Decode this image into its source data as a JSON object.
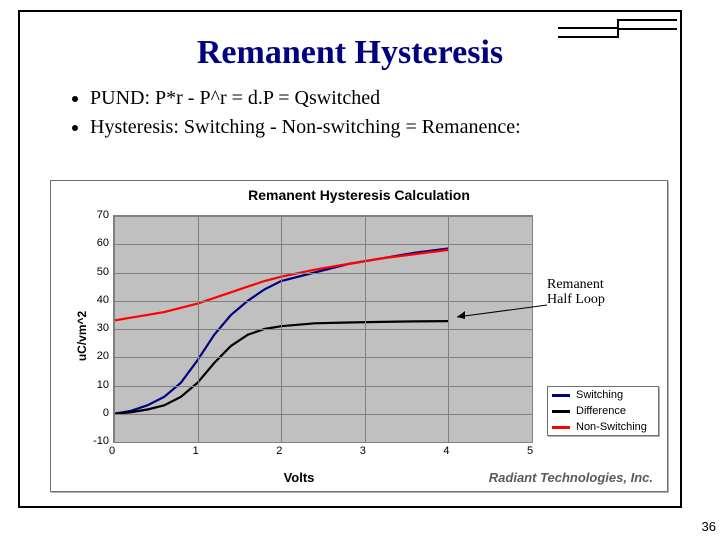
{
  "slide": {
    "title": "Remanent Hysteresis",
    "title_color": "#000080",
    "bullets": [
      "PUND:  P*r - P^r = d.P = Qswitched",
      "Hysteresis: Switching - Non-switching  = Remanence:"
    ],
    "page_number": "36",
    "footer": "Radiant Technologies, Inc."
  },
  "chart": {
    "type": "line",
    "title": "Remanent Hysteresis Calculation",
    "title_fontsize": 14,
    "xlabel": "Volts",
    "ylabel": "uC/vm^2",
    "label_fontsize": 12,
    "background_color": "#c0c0c0",
    "grid_color": "#808080",
    "xlim": [
      0,
      5
    ],
    "ylim": [
      -10,
      70
    ],
    "xtick_step": 1,
    "ytick_step": 10,
    "xticks": [
      0,
      1,
      2,
      3,
      4,
      5
    ],
    "yticks": [
      -10,
      0,
      10,
      20,
      30,
      40,
      50,
      60,
      70
    ],
    "line_width": 2.2,
    "series": [
      {
        "name": "Switching",
        "color": "#000080",
        "x": [
          0.0,
          0.2,
          0.4,
          0.6,
          0.8,
          1.0,
          1.2,
          1.4,
          1.6,
          1.8,
          2.0,
          2.4,
          2.8,
          3.2,
          3.6,
          4.0
        ],
        "y": [
          0.0,
          1.0,
          3.0,
          6.0,
          11.0,
          19.0,
          28.0,
          35.0,
          40.0,
          44.0,
          47.0,
          50.0,
          53.0,
          55.0,
          57.0,
          58.5
        ]
      },
      {
        "name": "Difference",
        "color": "#000000",
        "x": [
          0.0,
          0.2,
          0.4,
          0.6,
          0.8,
          1.0,
          1.2,
          1.4,
          1.6,
          1.8,
          2.0,
          2.4,
          2.8,
          3.2,
          3.6,
          4.0
        ],
        "y": [
          0.0,
          0.5,
          1.5,
          3.0,
          6.0,
          11.0,
          18.0,
          24.0,
          28.0,
          30.0,
          31.0,
          32.0,
          32.3,
          32.5,
          32.7,
          32.8
        ]
      },
      {
        "name": "Non-Switching",
        "color": "#ff0000",
        "x": [
          0.0,
          0.2,
          0.4,
          0.6,
          0.8,
          1.0,
          1.2,
          1.4,
          1.6,
          1.8,
          2.0,
          2.4,
          2.8,
          3.2,
          3.6,
          4.0
        ],
        "y": [
          33.0,
          34.0,
          35.0,
          36.0,
          37.5,
          39.0,
          41.0,
          43.0,
          45.0,
          47.0,
          48.5,
          51.0,
          53.0,
          55.0,
          56.5,
          58.0
        ]
      }
    ],
    "legend": {
      "items": [
        "Switching",
        "Difference",
        "Non-Switching"
      ],
      "colors": [
        "#000080",
        "#000000",
        "#ff0000"
      ]
    },
    "annotation": {
      "line1": "Remanent",
      "line2": "Half Loop"
    }
  }
}
